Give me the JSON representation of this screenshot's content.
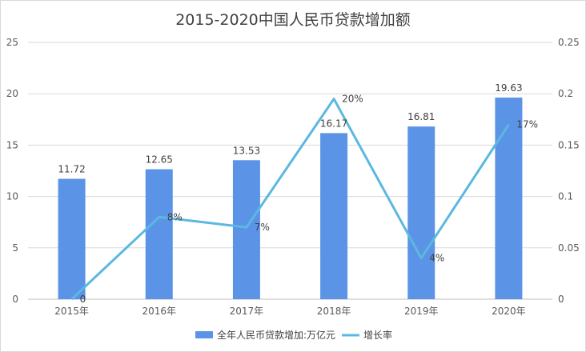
{
  "chart_data": {
    "type": "bar",
    "title": "2015-2020中国人民币贷款增加额",
    "categories": [
      "2015年",
      "2016年",
      "2017年",
      "2018年",
      "2019年",
      "2020年"
    ],
    "series": [
      {
        "name": "全年人民币贷款增加:万亿元",
        "type": "bar",
        "axis": "left",
        "color": "#5b93e6",
        "values": [
          11.72,
          12.65,
          13.53,
          16.17,
          16.81,
          19.63
        ],
        "labels": [
          "11.72",
          "12.65",
          "13.53",
          "16.17",
          "16.81",
          "19.63"
        ]
      },
      {
        "name": "增长率",
        "type": "line",
        "axis": "right",
        "color": "#5bb8e0",
        "values": [
          0,
          0.08,
          0.07,
          0.195,
          0.04,
          0.17
        ],
        "labels": [
          "0",
          "8%",
          "7%",
          "20%",
          "4%",
          "17%"
        ]
      }
    ],
    "y_left": {
      "ylim": [
        0,
        25
      ],
      "ticks": [
        "0",
        "5",
        "10",
        "15",
        "20",
        "25"
      ]
    },
    "y_right": {
      "ylim": [
        0,
        0.25
      ],
      "ticks": [
        "0",
        "0.05",
        "0.1",
        "0.15",
        "0.2",
        "0.25"
      ]
    },
    "grid": true,
    "legend_position": "bottom"
  }
}
